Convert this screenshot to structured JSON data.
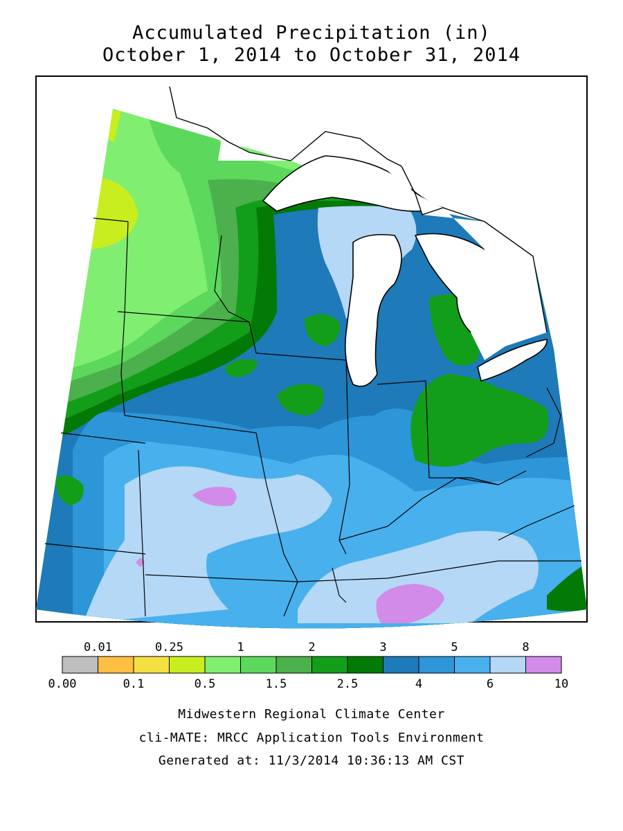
{
  "title_line1": "Accumulated Precipitation (in)",
  "title_line2": "October 1, 2014 to October 31, 2014",
  "legend": {
    "bins": [
      {
        "color": "#bebebe"
      },
      {
        "color": "#ffbf40"
      },
      {
        "color": "#f4e040"
      },
      {
        "color": "#c8ee20"
      },
      {
        "color": "#80ee70"
      },
      {
        "color": "#5cd85c"
      },
      {
        "color": "#4cb04c"
      },
      {
        "color": "#139e1a"
      },
      {
        "color": "#037a06"
      },
      {
        "color": "#1e7ab8"
      },
      {
        "color": "#2d96d8"
      },
      {
        "color": "#48b0ec"
      },
      {
        "color": "#b4d8f6"
      },
      {
        "color": "#d28be8"
      }
    ],
    "top_labels": [
      {
        "text": "0.01",
        "boundary": 1
      },
      {
        "text": "0.25",
        "boundary": 3
      },
      {
        "text": "1",
        "boundary": 5
      },
      {
        "text": "2",
        "boundary": 7
      },
      {
        "text": "3",
        "boundary": 9
      },
      {
        "text": "5",
        "boundary": 11
      },
      {
        "text": "8",
        "boundary": 13
      }
    ],
    "bottom_labels": [
      {
        "text": "0.00",
        "boundary": 0
      },
      {
        "text": "0.1",
        "boundary": 2
      },
      {
        "text": "0.5",
        "boundary": 4
      },
      {
        "text": "1.5",
        "boundary": 6
      },
      {
        "text": "2.5",
        "boundary": 8
      },
      {
        "text": "4",
        "boundary": 10
      },
      {
        "text": "6",
        "boundary": 12
      },
      {
        "text": "10",
        "boundary": 14
      }
    ]
  },
  "footer": {
    "line1": "Midwestern Regional Climate Center",
    "line2": "cli-MATE: MRCC Application Tools Environment",
    "line3": "Generated at: 11/3/2014 10:36:13 AM CST"
  }
}
